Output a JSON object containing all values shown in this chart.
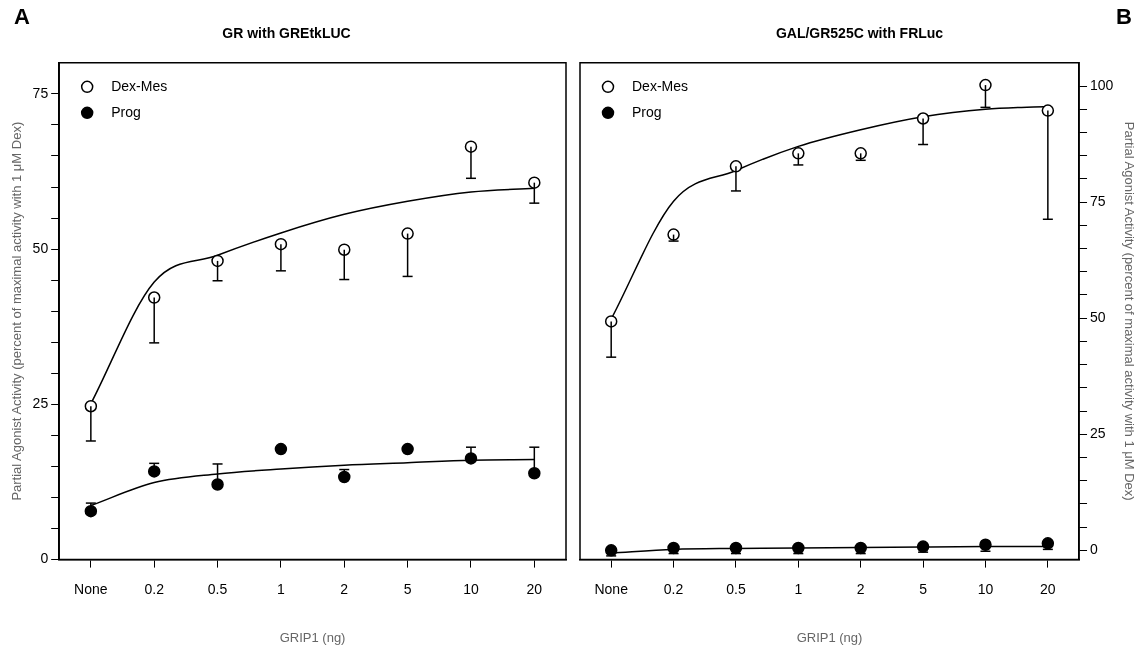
{
  "chart_data": [
    {
      "type": "scatter",
      "title": "GR with GREtkLUC",
      "xlabel": "GRIP1 (ng)",
      "ylabel": "Partial Agonist Activity (percent of maximal activity with 1 μM Dex)",
      "annotations": [
        "A"
      ],
      "legend": "top left",
      "marker": "circle",
      "categories": [
        "None",
        "0.2",
        "0.5",
        "1",
        "2",
        "5",
        "10",
        "20"
      ],
      "ylim": [
        0,
        80
      ],
      "yticks": [
        0,
        {
          "value": 5,
          "label": null
        },
        {
          "value": 10,
          "label": null
        },
        {
          "value": 15,
          "label": null
        },
        {
          "value": 20,
          "label": null
        },
        25,
        {
          "value": 30,
          "label": null
        },
        {
          "value": 35,
          "label": null
        },
        {
          "value": 40,
          "label": null
        },
        {
          "value": 45,
          "label": null
        },
        50,
        {
          "value": 55,
          "label": null
        },
        {
          "value": 60,
          "label": null
        },
        {
          "value": 65,
          "label": null
        },
        {
          "value": 70,
          "label": null
        },
        75
      ],
      "series": [
        {
          "name": "Dex-Mes",
          "color": "#000000",
          "values": [
            24.7,
            42.2,
            48.1,
            50.8,
            49.9,
            52.5,
            66.5,
            60.7
          ],
          "errors": [
            [
              19.1,
              24.7
            ],
            [
              34.9,
              42.2
            ],
            [
              44.9,
              48.1
            ],
            [
              46.5,
              50.8
            ],
            [
              45.1,
              49.9
            ],
            [
              45.6,
              52.5
            ],
            [
              61.4,
              66.5
            ],
            [
              57.4,
              60.7
            ]
          ]
        },
        {
          "name": "Prog",
          "color": "#000000",
          "values": [
            7.8,
            14.2,
            12.1,
            17.8,
            13.3,
            17.8,
            16.3,
            13.9
          ],
          "errors": [
            [
              7.8,
              9.1
            ],
            [
              14.2,
              15.5
            ],
            [
              12.1,
              15.4
            ],
            null,
            [
              13.3,
              14.5
            ],
            null,
            [
              16.3,
              18.1
            ],
            [
              13.9,
              18.1
            ]
          ]
        },
        {
          "type": "line",
          "color": "#000000",
          "marker": "none",
          "values": [
            25.1,
            44.7,
            49.0,
            52.6,
            55.6,
            57.7,
            59.2,
            59.8
          ]
        },
        {
          "type": "line",
          "color": "#000000",
          "marker": "none",
          "values": [
            8.7,
            12.4,
            13.8,
            14.6,
            15.2,
            15.6,
            16.0,
            16.1
          ]
        }
      ]
    },
    {
      "type": "scatter",
      "title": "GAL/GR525C with FRLuc",
      "xlabel": "GRIP1 (ng)",
      "y2label": "Partial Agonist Activity (percent of maximal activity with 1 μM Dex)",
      "annotations": [
        "B"
      ],
      "legend": "top left",
      "marker": "circle",
      "categories": [
        "None",
        "0.2",
        "0.5",
        "1",
        "2",
        "5",
        "10",
        "20"
      ],
      "y2lim": [
        -2,
        105
      ],
      "y2ticks": [
        0,
        {
          "value": 5,
          "label": null
        },
        {
          "value": 10,
          "label": null
        },
        {
          "value": 15,
          "label": null
        },
        {
          "value": 20,
          "label": null
        },
        25,
        {
          "value": 30,
          "label": null
        },
        {
          "value": 35,
          "label": null
        },
        {
          "value": 40,
          "label": null
        },
        {
          "value": 45,
          "label": null
        },
        50,
        {
          "value": 55,
          "label": null
        },
        {
          "value": 60,
          "label": null
        },
        {
          "value": 65,
          "label": null
        },
        {
          "value": 70,
          "label": null
        },
        75,
        {
          "value": 80,
          "label": null
        },
        {
          "value": 85,
          "label": null
        },
        {
          "value": 90,
          "label": null
        },
        {
          "value": 95,
          "label": null
        },
        100
      ],
      "series": [
        {
          "name": "Dex-Mes",
          "color": "#000000",
          "axis": "y2",
          "values": [
            49.3,
            68.0,
            82.7,
            85.5,
            85.5,
            93.0,
            100.2,
            94.7
          ],
          "errors": [
            [
              41.6,
              49.3
            ],
            [
              66.6,
              68.0
            ],
            [
              77.4,
              82.7
            ],
            [
              83.0,
              85.5
            ],
            [
              84.0,
              85.5
            ],
            [
              87.4,
              93.0
            ],
            [
              95.4,
              100.2
            ],
            [
              71.3,
              94.7
            ]
          ]
        },
        {
          "name": "Prog",
          "color": "#000000",
          "axis": "y2",
          "values": [
            0,
            0.5,
            0.5,
            0.5,
            0.5,
            0.8,
            1.2,
            1.5
          ],
          "errors": [
            [
              -1.2,
              0
            ],
            [
              -0.7,
              0.5
            ],
            [
              -0.7,
              0.5
            ],
            [
              -0.7,
              0.5
            ],
            [
              -0.7,
              0.5
            ],
            [
              -0.4,
              0.8
            ],
            [
              -0.2,
              1.2
            ],
            [
              0.2,
              1.5
            ]
          ]
        },
        {
          "type": "line",
          "color": "#000000",
          "marker": "none",
          "axis": "y2",
          "values": [
            49.8,
            75.2,
            81.8,
            87.0,
            90.6,
            93.4,
            95.0,
            95.6
          ]
        },
        {
          "type": "line",
          "color": "#000000",
          "marker": "none",
          "axis": "y2",
          "values": [
            -0.6,
            0.2,
            0.4,
            0.5,
            0.6,
            0.7,
            0.8,
            0.8
          ]
        }
      ]
    }
  ]
}
